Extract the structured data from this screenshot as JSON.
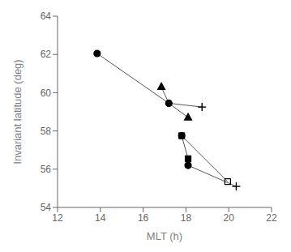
{
  "chart_data": {
    "type": "scatter",
    "xlabel": "MLT (h)",
    "ylabel": "Invariant latitude (deg)",
    "xlim": [
      12,
      22
    ],
    "ylim": [
      54,
      64
    ],
    "xticks": [
      12,
      14,
      16,
      18,
      20,
      22
    ],
    "yticks": [
      54,
      56,
      58,
      60,
      62,
      64
    ],
    "grid": false,
    "series": [
      {
        "type": "line",
        "color": "#555555",
        "x": [
          13.85,
          17.2
        ],
        "values": [
          62.05,
          59.45
        ]
      },
      {
        "type": "line",
        "color": "#555555",
        "x": [
          17.2,
          18.1
        ],
        "values": [
          59.45,
          58.7
        ]
      },
      {
        "type": "line",
        "color": "#555555",
        "x": [
          16.85,
          17.2
        ],
        "values": [
          60.3,
          59.45
        ]
      },
      {
        "type": "line",
        "color": "#555555",
        "x": [
          17.2,
          18.75
        ],
        "values": [
          59.45,
          59.25
        ]
      },
      {
        "type": "line",
        "color": "#555555",
        "x": [
          17.8,
          18.1
        ],
        "values": [
          57.75,
          56.55
        ]
      },
      {
        "type": "line",
        "color": "#555555",
        "x": [
          17.8,
          19.95
        ],
        "values": [
          57.75,
          55.35
        ]
      },
      {
        "type": "line",
        "color": "#555555",
        "x": [
          18.1,
          20.35
        ],
        "values": [
          56.2,
          55.1
        ]
      },
      {
        "type": "scatter",
        "marker": "circle",
        "color": "#000000",
        "x": [
          13.85,
          17.2,
          17.8,
          18.1
        ],
        "values": [
          62.05,
          59.45,
          57.75,
          56.2
        ]
      },
      {
        "type": "scatter",
        "marker": "triangle",
        "color": "#000000",
        "x": [
          16.85,
          18.1
        ],
        "values": [
          60.3,
          58.7
        ]
      },
      {
        "type": "scatter",
        "marker": "plus",
        "color": "#000000",
        "x": [
          18.75,
          20.35
        ],
        "values": [
          59.25,
          55.1
        ]
      },
      {
        "type": "scatter",
        "marker": "square_open",
        "color": "#000000",
        "x": [
          17.8,
          19.95
        ],
        "values": [
          57.75,
          55.35
        ]
      },
      {
        "type": "scatter",
        "marker": "square",
        "color": "#000000",
        "x": [
          18.1
        ],
        "values": [
          56.55
        ]
      }
    ]
  }
}
